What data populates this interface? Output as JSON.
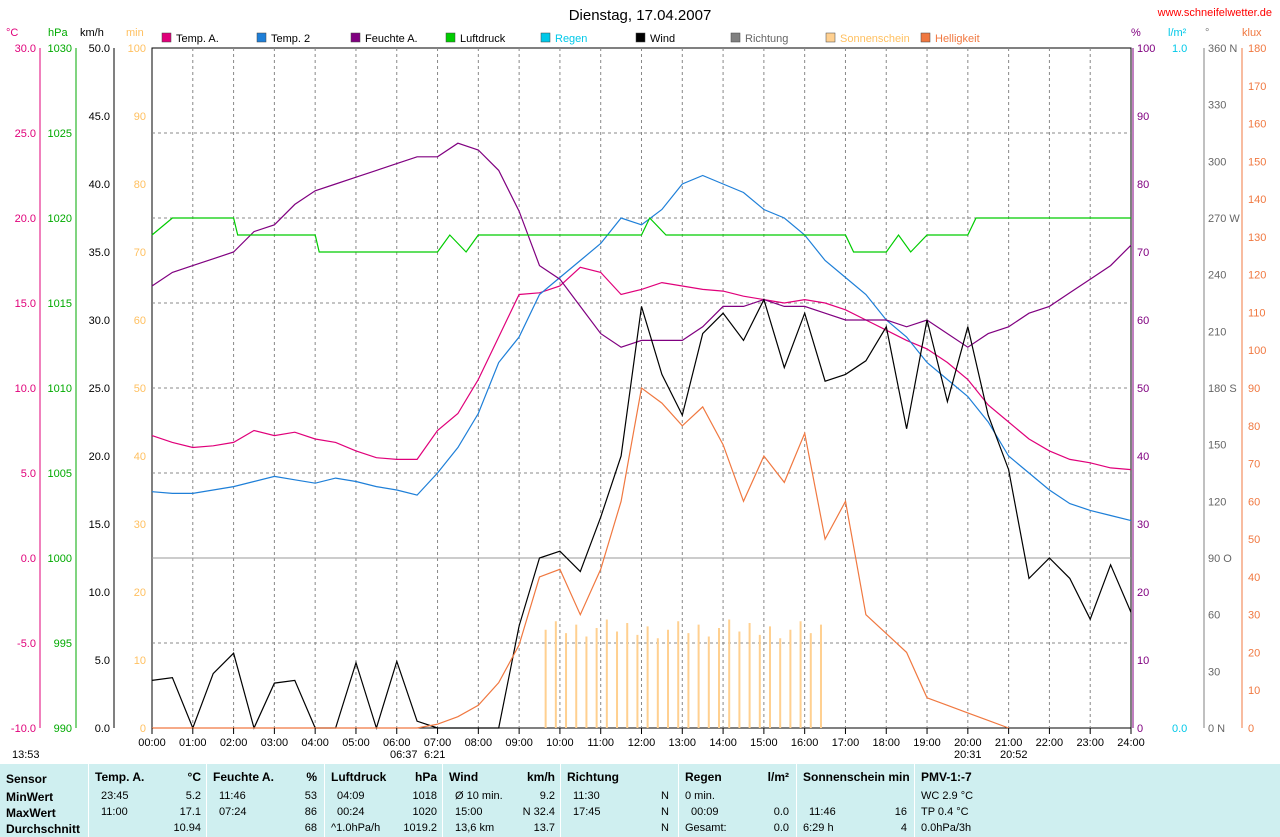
{
  "title": "Dienstag, 17.04.2007",
  "website": "www.schneifelwetter.de",
  "axis_units": {
    "temp": "°C",
    "pressure": "hPa",
    "wind": "km/h",
    "sun": "min",
    "humidity": "%",
    "rain": "l/m²",
    "direction": "°",
    "light": "klux"
  },
  "left_axes": {
    "temp": [
      "30.0",
      "25.0",
      "20.0",
      "15.0",
      "10.0",
      "5.0",
      "0.0",
      "-5.0",
      "-10.0"
    ],
    "pressure": [
      "1030",
      "1025",
      "1020",
      "1015",
      "1010",
      "1005",
      "1000",
      "995",
      "990"
    ],
    "wind": [
      "50.0",
      "45.0",
      "40.0",
      "35.0",
      "30.0",
      "25.0",
      "20.0",
      "15.0",
      "10.0",
      "5.0",
      "0.0"
    ],
    "sun": [
      "100",
      "90",
      "80",
      "70",
      "60",
      "50",
      "40",
      "30",
      "20",
      "10",
      "0"
    ]
  },
  "right_axes": {
    "humidity": [
      "100",
      "90",
      "80",
      "70",
      "60",
      "50",
      "40",
      "30",
      "20",
      "10",
      "0"
    ],
    "rain": [
      "1.0",
      "0.0"
    ],
    "direction": [
      "360 N",
      "330",
      "300",
      "270 W",
      "240",
      "210",
      "180 S",
      "150",
      "120",
      "90 O",
      "60",
      "30",
      "0 N"
    ],
    "light": [
      "180",
      "170",
      "160",
      "150",
      "140",
      "130",
      "120",
      "110",
      "100",
      "90",
      "80",
      "70",
      "60",
      "50",
      "40",
      "30",
      "20",
      "10",
      "0"
    ]
  },
  "legend": [
    {
      "label": "Temp. A.",
      "color": "#e0007a"
    },
    {
      "label": "Temp. 2",
      "color": "#1e7fd8"
    },
    {
      "label": "Feuchte A.",
      "color": "#800080"
    },
    {
      "label": "Luftdruck",
      "color": "#00cc00"
    },
    {
      "label": "Regen",
      "color": "#00c8e8"
    },
    {
      "label": "Wind",
      "color": "#000000"
    },
    {
      "label": "Richtung",
      "color": "#808080"
    },
    {
      "label": "Sonnenschein",
      "color": "#ffd090"
    },
    {
      "label": "Helligkeit",
      "color": "#f07840"
    }
  ],
  "x_ticks": [
    "00:00",
    "01:00",
    "02:00",
    "03:00",
    "04:00",
    "05:00",
    "06:00",
    "07:00",
    "08:00",
    "09:00",
    "10:00",
    "11:00",
    "12:00",
    "13:00",
    "14:00",
    "15:00",
    "16:00",
    "17:00",
    "18:00",
    "19:00",
    "20:00",
    "21:00",
    "22:00",
    "23:00",
    "24:00"
  ],
  "bottom_notes": {
    "time_left": "13:53",
    "sunrise": "06:37",
    "sunrise2": "6:21",
    "sunset": "20:31",
    "sunset2": "20:52"
  },
  "chart_data": {
    "type": "line",
    "title": "Dienstag, 17.04.2007",
    "x_unit": "hours",
    "xlim": [
      0,
      24
    ],
    "series": [
      {
        "name": "Temp. A.",
        "axis": "temp °C",
        "ylim": [
          -10,
          30
        ],
        "color": "#e0007a",
        "x": [
          0,
          0.5,
          1,
          1.5,
          2,
          2.5,
          3,
          3.5,
          4,
          4.5,
          5,
          5.5,
          6,
          6.5,
          7,
          7.5,
          8,
          8.5,
          9,
          9.5,
          10,
          10.5,
          11,
          11.5,
          12,
          12.5,
          13,
          13.5,
          14,
          14.5,
          15,
          15.5,
          16,
          16.5,
          17,
          17.5,
          18,
          18.5,
          19,
          19.5,
          20,
          20.5,
          21,
          21.5,
          22,
          22.5,
          23,
          23.5,
          24
        ],
        "y": [
          7.2,
          6.8,
          6.5,
          6.6,
          6.8,
          7.5,
          7.2,
          7.4,
          7.0,
          6.8,
          6.3,
          5.9,
          5.8,
          5.8,
          7.5,
          8.5,
          10.5,
          13.0,
          15.5,
          15.6,
          16.0,
          17.1,
          16.8,
          15.5,
          15.8,
          16.2,
          16.0,
          15.8,
          15.7,
          15.4,
          15.2,
          15.0,
          15.2,
          15.0,
          14.6,
          14.0,
          13.4,
          12.8,
          12.3,
          11.5,
          10.5,
          9.0,
          8.0,
          7.0,
          6.3,
          5.8,
          5.6,
          5.3,
          5.2
        ]
      },
      {
        "name": "Temp. 2",
        "axis": "temp °C",
        "ylim": [
          -10,
          30
        ],
        "color": "#1e7fd8",
        "x": [
          0,
          0.5,
          1,
          1.5,
          2,
          2.5,
          3,
          3.5,
          4,
          4.5,
          5,
          5.5,
          6,
          6.5,
          7,
          7.5,
          8,
          8.5,
          9,
          9.5,
          10,
          10.5,
          11,
          11.5,
          12,
          12.5,
          13,
          13.5,
          14,
          14.5,
          15,
          15.5,
          16,
          16.5,
          17,
          17.5,
          18,
          18.5,
          19,
          19.5,
          20,
          20.5,
          21,
          21.5,
          22,
          22.5,
          23,
          23.5,
          24
        ],
        "y": [
          3.9,
          3.8,
          3.8,
          4.0,
          4.2,
          4.5,
          4.8,
          4.6,
          4.4,
          4.7,
          4.5,
          4.2,
          4.0,
          3.7,
          5.0,
          6.5,
          8.5,
          11.5,
          13.0,
          15.5,
          16.5,
          17.5,
          18.5,
          20.0,
          19.6,
          20.5,
          22.0,
          22.5,
          22.0,
          21.5,
          20.5,
          20.0,
          19.0,
          17.5,
          16.5,
          15.5,
          14.0,
          13.0,
          11.5,
          10.5,
          9.5,
          8.0,
          6.0,
          5.0,
          4.0,
          3.2,
          2.8,
          2.5,
          2.2
        ]
      },
      {
        "name": "Feuchte A.",
        "axis": "humidity %",
        "ylim": [
          0,
          100
        ],
        "color": "#800080",
        "x": [
          0,
          0.5,
          1,
          1.5,
          2,
          2.5,
          3,
          3.5,
          4,
          4.5,
          5,
          5.5,
          6,
          6.5,
          7,
          7.5,
          8,
          8.5,
          9,
          9.5,
          10,
          10.5,
          11,
          11.5,
          12,
          12.5,
          13,
          13.5,
          14,
          14.5,
          15,
          15.5,
          16,
          16.5,
          17,
          17.5,
          18,
          18.5,
          19,
          19.5,
          20,
          20.5,
          21,
          21.5,
          22,
          22.5,
          23,
          23.5,
          24
        ],
        "y": [
          65,
          67,
          68,
          69,
          70,
          73,
          74,
          77,
          79,
          80,
          81,
          82,
          83,
          84,
          84,
          86,
          85,
          82,
          76,
          68,
          66,
          62,
          58,
          56,
          57,
          57,
          57,
          59,
          62,
          62,
          63,
          62,
          62,
          61,
          60,
          60,
          60,
          59,
          60,
          58,
          56,
          58,
          59,
          61,
          62,
          64,
          66,
          68,
          71
        ]
      },
      {
        "name": "Luftdruck",
        "axis": "pressure hPa",
        "ylim": [
          990,
          1030
        ],
        "color": "#00cc00",
        "x": [
          0,
          0.5,
          1,
          2,
          2.1,
          3,
          4,
          4.1,
          5,
          6,
          7,
          7.3,
          7.7,
          8,
          9,
          10,
          11,
          12,
          12.2,
          12.6,
          13,
          14,
          15,
          16,
          17,
          17.2,
          18,
          18.3,
          18.6,
          19,
          20,
          20.2,
          21,
          22,
          23,
          24
        ],
        "y": [
          1019,
          1020,
          1020,
          1020,
          1019,
          1019,
          1019,
          1018,
          1018,
          1018,
          1018,
          1019,
          1018,
          1019,
          1019,
          1019,
          1019,
          1019,
          1020,
          1019,
          1019,
          1019,
          1019,
          1019,
          1019,
          1018,
          1018,
          1019,
          1018,
          1019,
          1019,
          1020,
          1020,
          1020,
          1020,
          1020
        ]
      },
      {
        "name": "Wind",
        "axis": "wind km/h",
        "ylim": [
          0,
          50
        ],
        "color": "#000000",
        "x": [
          0,
          0.5,
          1,
          1.5,
          2,
          2.5,
          3,
          3.5,
          4,
          4.5,
          5,
          5.5,
          6,
          6.5,
          7,
          7.5,
          8,
          8.5,
          9,
          9.5,
          10,
          10.5,
          11,
          11.5,
          12,
          12.5,
          13,
          13.5,
          14,
          14.5,
          15,
          15.5,
          16,
          16.5,
          17,
          17.5,
          18,
          18.5,
          19,
          19.5,
          20,
          20.5,
          21,
          21.5,
          22,
          22.5,
          23,
          23.5,
          24
        ],
        "y": [
          3.5,
          3.7,
          0.0,
          4.0,
          5.5,
          0.0,
          3.3,
          3.5,
          0.0,
          0.0,
          4.8,
          0.0,
          4.9,
          0.5,
          0.0,
          0.0,
          0.0,
          0.0,
          7.5,
          12.5,
          13.0,
          11.5,
          15.5,
          20.0,
          31.0,
          26.0,
          23.0,
          29.0,
          30.5,
          28.5,
          31.5,
          26.5,
          30.5,
          25.5,
          26.0,
          27.0,
          29.5,
          22.0,
          30.0,
          24.0,
          29.5,
          23.0,
          19.0,
          11.0,
          12.5,
          11.0,
          8.0,
          12.0,
          8.5
        ]
      },
      {
        "name": "Helligkeit",
        "axis": "light klux",
        "ylim": [
          0,
          180
        ],
        "color": "#f07840",
        "x": [
          0,
          6.5,
          7,
          7.5,
          8,
          8.5,
          9,
          9.5,
          10,
          10.5,
          11,
          11.5,
          12,
          12.5,
          13,
          13.5,
          14,
          14.5,
          15,
          15.5,
          16,
          16.5,
          17,
          17.5,
          18,
          18.5,
          19,
          19.5,
          20,
          20.5,
          21
        ],
        "y": [
          0,
          0,
          1,
          3,
          6,
          12,
          22,
          40,
          42,
          30,
          42,
          60,
          90,
          86,
          80,
          85,
          75,
          60,
          72,
          65,
          78,
          50,
          60,
          30,
          25,
          20,
          8,
          6,
          4,
          2,
          0
        ]
      }
    ]
  },
  "stats": {
    "row_labels": [
      "Sensor",
      "MinWert",
      "MaxWert",
      "Durchschnitt"
    ],
    "temp": {
      "h1": "Temp. A.",
      "h2": "°C",
      "min_t": "23:45",
      "min_v": "5.2",
      "max_t": "11:00",
      "max_v": "17.1",
      "avg": "10.94"
    },
    "hum": {
      "h1": "Feuchte A.",
      "h2": "%",
      "min_t": "11:46",
      "min_v": "53",
      "max_t": "07:24",
      "max_v": "86",
      "avg": "68"
    },
    "press": {
      "h1": "Luftdruck",
      "h2": "hPa",
      "min_t": "04:09",
      "min_v": "1018",
      "max_t": "00:24",
      "max_v": "1020",
      "avg_l": "^1.0hPa/h",
      "avg": "1019.2"
    },
    "wind": {
      "h1": "Wind",
      "h2": "km/h",
      "min_t": "Ø 10 min.",
      "min_v": "9.2",
      "max_t": "15:00",
      "max_v": "N 32.4",
      "avg_l": "13,6 km",
      "avg": "13.7"
    },
    "dir": {
      "h1": "Richtung",
      "min_t": "11:30",
      "min_v": "N",
      "max_t": "17:45",
      "max_v": "N",
      "avg": "N"
    },
    "rain": {
      "h1": "Regen",
      "h2": "l/m²",
      "min_t": "0 min.",
      "max_t": "00:09",
      "max_v": "0.0",
      "avg_l": "Gesamt:",
      "avg": "0.0"
    },
    "sun": {
      "h1": "Sonnenschein min",
      "max_t": "11:46",
      "max_v": "16",
      "avg_l": "6:29 h",
      "avg": "4"
    },
    "pmv": {
      "h1": "PMV-1:-7",
      "l1": "WC 2.9 °C",
      "l2": "TP 0.4 °C",
      "l3": "0.0hPa/3h"
    }
  }
}
